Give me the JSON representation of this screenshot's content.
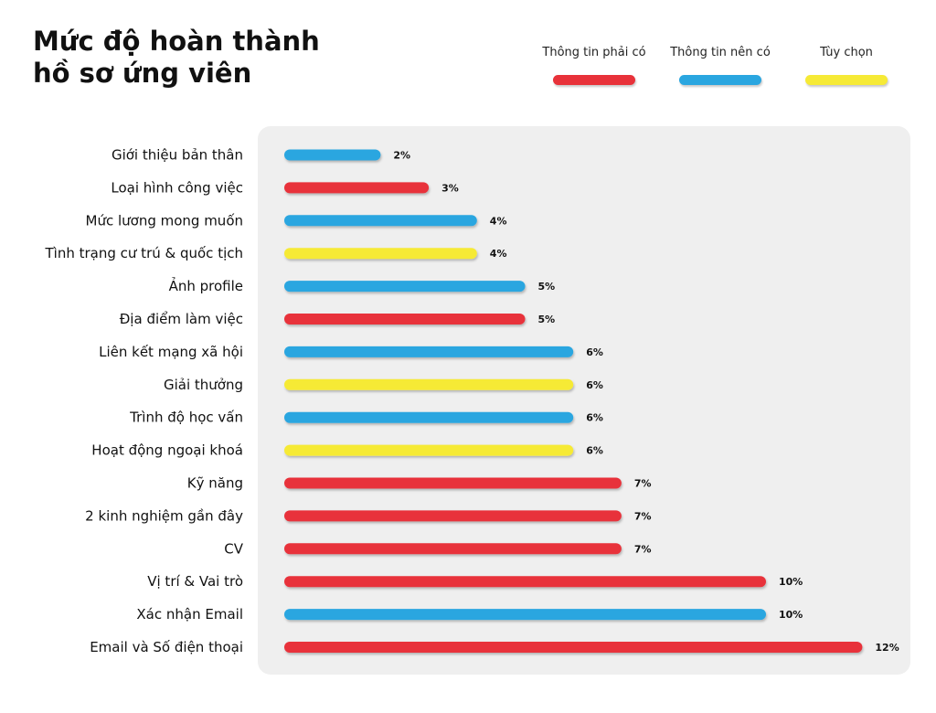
{
  "colors": {
    "required": "#e8323a",
    "recommended": "#2aa6e0",
    "optional": "#f6ea36",
    "panel": "#efefef"
  },
  "legend": [
    {
      "key": "required",
      "label": "Thông tin phải có"
    },
    {
      "key": "recommended",
      "label": "Thông tin nên có"
    },
    {
      "key": "optional",
      "label": "Tùy chọn"
    }
  ],
  "chart_data": {
    "type": "bar",
    "orientation": "horizontal",
    "title": "Mức độ hoàn thành hồ sơ ứng viên",
    "value_unit": "%",
    "xlim": [
      0,
      12
    ],
    "grid": false,
    "legend_position": "top-right",
    "categories": [
      "Giới thiệu bản thân",
      "Loại hình công việc",
      "Mức lương mong muốn",
      "Tình trạng cư trú & quốc tịch",
      "Ảnh profile",
      "Địa điểm làm việc",
      "Liên kết mạng xã hội",
      "Giải thưởng",
      "Trình độ học vấn",
      "Hoạt động ngoại khoá",
      "Kỹ năng",
      "2 kinh nghiệm gần đây",
      "CV",
      "Vị trí & Vai trò",
      "Xác nhận Email",
      "Email và Số điện thoại"
    ],
    "values": [
      2,
      3,
      4,
      4,
      5,
      5,
      6,
      6,
      6,
      6,
      7,
      7,
      7,
      10,
      10,
      12
    ],
    "value_labels": [
      "2%",
      "3%",
      "4%",
      "4%",
      "5%",
      "5%",
      "6%",
      "6%",
      "6%",
      "6%",
      "7%",
      "7%",
      "7%",
      "10%",
      "10%",
      "12%"
    ],
    "groups": [
      "recommended",
      "required",
      "recommended",
      "optional",
      "recommended",
      "required",
      "recommended",
      "optional",
      "recommended",
      "optional",
      "required",
      "required",
      "required",
      "required",
      "recommended",
      "required"
    ]
  }
}
